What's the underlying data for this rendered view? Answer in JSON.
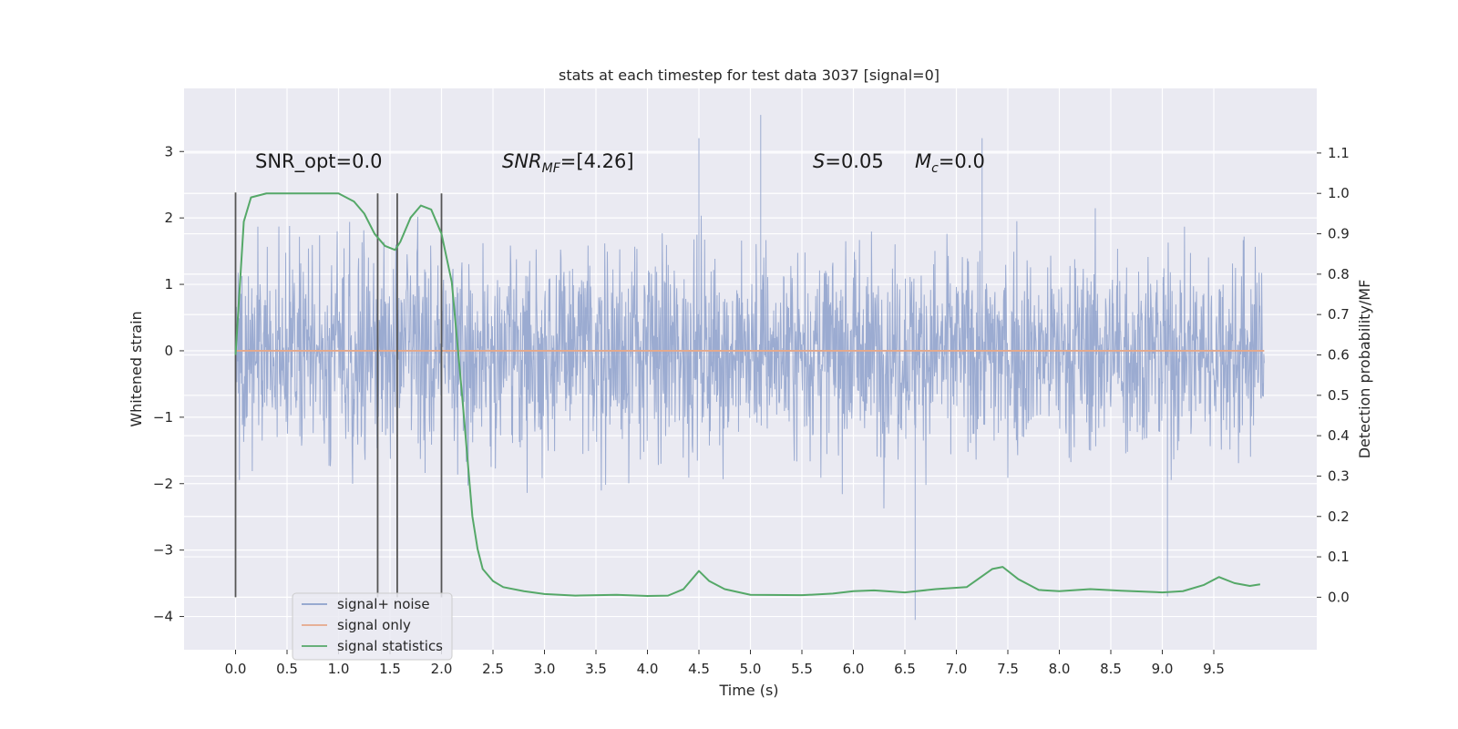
{
  "chart_data": {
    "type": "line",
    "title": "stats at each timestep for test data 3037 [signal=0]",
    "xlabel": "Time (s)",
    "ylabel": "Whitened strain",
    "y2label": "Detection probability/MF",
    "xlim": [
      -0.5,
      10.5
    ],
    "ylim": [
      -4.5,
      3.95
    ],
    "y2lim": [
      -0.13,
      1.26
    ],
    "x_ticks": [
      "0.0",
      "0.5",
      "1.0",
      "1.5",
      "2.0",
      "2.5",
      "3.0",
      "3.5",
      "4.0",
      "4.5",
      "5.0",
      "5.5",
      "6.0",
      "6.5",
      "7.0",
      "7.5",
      "8.0",
      "8.5",
      "9.0",
      "9.5"
    ],
    "y_ticks": [
      "3",
      "2",
      "1",
      "0",
      "−1",
      "−2",
      "−3",
      "−4"
    ],
    "y2_ticks": [
      "1.1",
      "1.0",
      "0.9",
      "0.8",
      "0.7",
      "0.6",
      "0.5",
      "0.4",
      "0.3",
      "0.2",
      "0.1",
      "0.0"
    ],
    "grid": true,
    "legend_position": "lower-left",
    "annotations": {
      "snr_opt": "SNR_opt=0.0",
      "snr_mf_base": "SNR",
      "snr_mf_sub": "MF",
      "snr_mf_value": "=[4.26]",
      "s_sym": "S",
      "s_value": "=0.05",
      "mc_sym": "M",
      "mc_sub": "c",
      "mc_value": "=0.0"
    },
    "vertical_markers": [
      0.0,
      1.38,
      1.57,
      2.0
    ],
    "series": [
      {
        "name": "signal+ noise",
        "color": "#8da0cb",
        "description": "whitened noisy strain, approx. Gaussian noise in roughly [-3.2, 3.5]",
        "x_range": [
          0.0,
          9.99
        ],
        "spike_x": [
          4.5,
          5.1,
          6.6,
          7.25,
          9.05
        ],
        "spike_y": [
          3.2,
          3.55,
          -4.05,
          3.2,
          -3.7
        ]
      },
      {
        "name": "signal only",
        "color": "#e5a88a",
        "x": [
          0.0,
          9.99
        ],
        "y": [
          0.0,
          0.0
        ]
      },
      {
        "name": "signal statistics",
        "color": "#55a868",
        "axis": "right",
        "x": [
          0.0,
          0.08,
          0.15,
          0.3,
          0.5,
          0.8,
          1.0,
          1.15,
          1.25,
          1.35,
          1.45,
          1.55,
          1.6,
          1.7,
          1.8,
          1.9,
          2.0,
          2.1,
          2.2,
          2.3,
          2.35,
          2.4,
          2.5,
          2.6,
          2.8,
          3.0,
          3.3,
          3.7,
          4.0,
          4.2,
          4.35,
          4.5,
          4.6,
          4.75,
          5.0,
          5.5,
          5.8,
          6.0,
          6.2,
          6.5,
          6.8,
          7.1,
          7.35,
          7.45,
          7.6,
          7.8,
          8.0,
          8.3,
          8.6,
          9.0,
          9.2,
          9.4,
          9.55,
          9.7,
          9.85,
          9.95
        ],
        "y": [
          0.6,
          0.93,
          0.99,
          1.0,
          1.0,
          1.0,
          1.0,
          0.98,
          0.95,
          0.9,
          0.87,
          0.86,
          0.88,
          0.94,
          0.97,
          0.96,
          0.9,
          0.78,
          0.5,
          0.2,
          0.12,
          0.07,
          0.04,
          0.025,
          0.015,
          0.008,
          0.004,
          0.006,
          0.003,
          0.004,
          0.02,
          0.065,
          0.04,
          0.02,
          0.006,
          0.005,
          0.009,
          0.015,
          0.017,
          0.012,
          0.02,
          0.025,
          0.07,
          0.075,
          0.045,
          0.018,
          0.015,
          0.02,
          0.016,
          0.012,
          0.015,
          0.03,
          0.05,
          0.035,
          0.028,
          0.032
        ]
      }
    ]
  }
}
